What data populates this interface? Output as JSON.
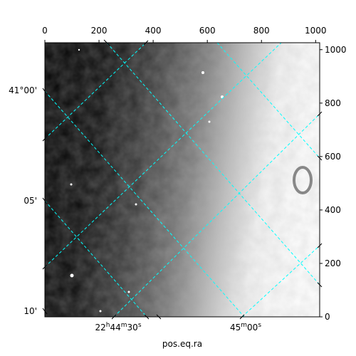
{
  "chart_data": {
    "type": "image",
    "x_label": "pos.eq.ra",
    "xlim": [
      0,
      1015
    ],
    "xticks": [
      0,
      200,
      400,
      600,
      800,
      1000
    ],
    "ylim": [
      0,
      1026
    ],
    "yticks": [
      0,
      200,
      400,
      600,
      800,
      1000
    ],
    "dec_labels": [
      "41°00'",
      "05'",
      "10'"
    ],
    "ra_labels": [
      "22h44m30s",
      "45m00s"
    ],
    "grid_color": "#00ffff"
  }
}
